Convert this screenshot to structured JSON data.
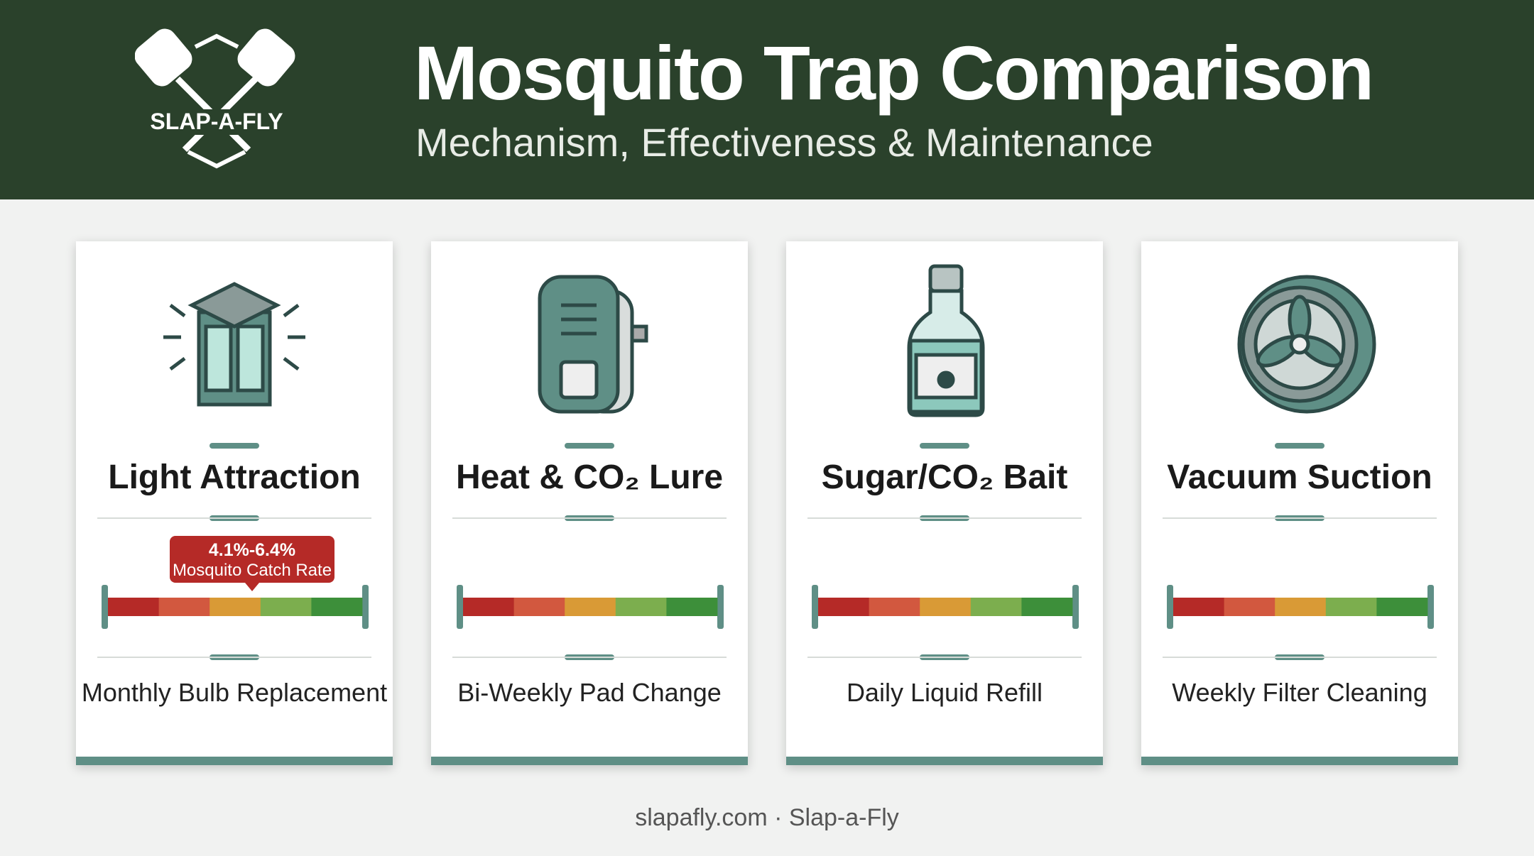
{
  "header": {
    "logo": "SLAP-A-FLY",
    "title": "Mosquito Trap Comparison",
    "subtitle": "Mechanism, Effectiveness & Maintenance"
  },
  "cards": [
    {
      "name": "Light Attraction",
      "badge": {
        "value": "4.1%-6.4%",
        "label": "Mosquito Catch Rate"
      },
      "maintenance": "Monthly Bulb Replacement"
    },
    {
      "name": "Heat & CO₂ Lure",
      "maintenance": "Bi-Weekly Pad Change"
    },
    {
      "name": "Sugar/CO₂ Bait",
      "maintenance": "Daily Liquid Refill"
    },
    {
      "name": "Vacuum Suction",
      "maintenance": "Weekly Filter Cleaning"
    }
  ],
  "footer": "slapafly.com · Slap-a-Fly"
}
